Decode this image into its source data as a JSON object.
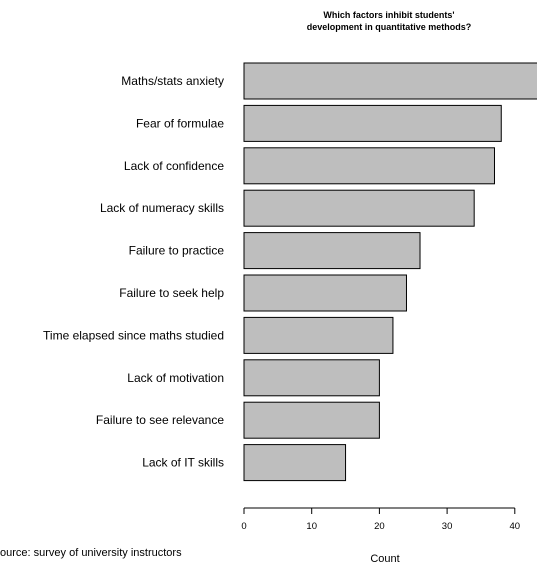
{
  "chart_data": {
    "type": "bar",
    "orientation": "horizontal",
    "title": [
      "Which factors inhibit students'",
      "development in quantitative methods?"
    ],
    "categories": [
      "Maths/stats anxiety",
      "Fear of formulae",
      "Lack of confidence",
      "Lack of numeracy skills",
      "Failure to practice",
      "Failure to seek help",
      "Time elapsed since maths studied",
      "Lack of motivation",
      "Failure to see relevance",
      "Lack of IT skills"
    ],
    "values": [
      44,
      38,
      37,
      34,
      26,
      24,
      22,
      20,
      20,
      15
    ],
    "xlabel": "Count",
    "xlim": [
      0,
      44
    ],
    "xticks": [
      0,
      10,
      20,
      30,
      40
    ],
    "grid": false,
    "bar_color": "#bebebe",
    "bar_stroke": "#000000"
  },
  "source": "ource: survey of university instructors"
}
